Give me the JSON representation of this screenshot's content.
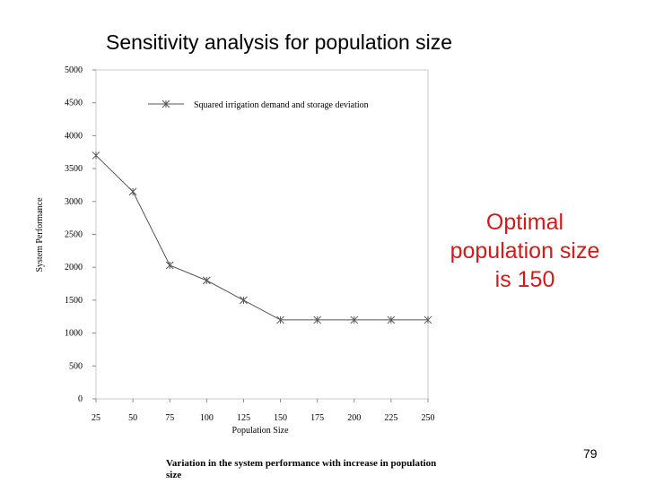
{
  "slide": {
    "title": "Sensitivity analysis for population size",
    "callout": "Optimal population size is 150",
    "page_number": "79",
    "caption": "Variation in the system performance with increase in population size"
  },
  "chart_data": {
    "type": "line",
    "xlabel": "Population Size",
    "ylabel": "System Performance",
    "x": [
      25,
      50,
      75,
      100,
      125,
      150,
      175,
      200,
      225,
      250
    ],
    "ylim": [
      0,
      5000
    ],
    "y_ticks": [
      0,
      500,
      1000,
      1500,
      2000,
      2500,
      3000,
      3500,
      4000,
      4500,
      5000
    ],
    "grid": false,
    "legend_position": "top",
    "series": [
      {
        "name": "Squared irrigation demand and storage deviation",
        "values": [
          3700,
          3150,
          2030,
          1800,
          1500,
          1200,
          1200,
          1200,
          1200,
          1200
        ],
        "color": "#555555",
        "marker": "asterisk"
      }
    ]
  }
}
